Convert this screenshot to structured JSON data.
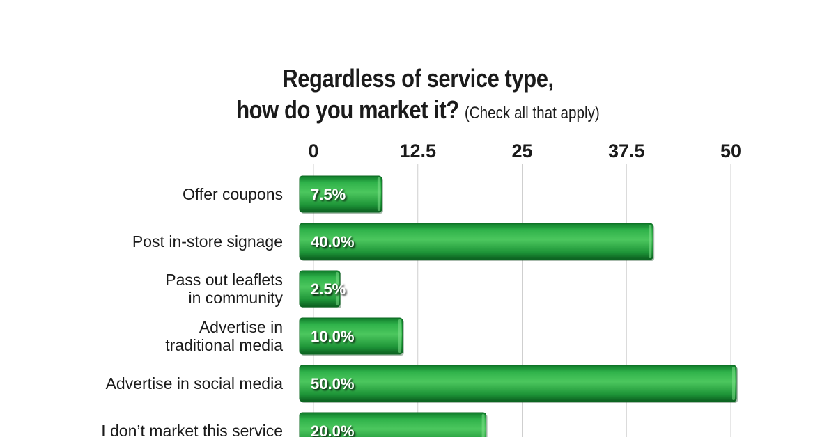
{
  "chart_data": {
    "type": "bar",
    "orientation": "horizontal",
    "title": "Regardless of service type,",
    "title_line2": "how do you market it?",
    "subtitle": "(Check all that apply)",
    "xlim": [
      0,
      50
    ],
    "ticks": [
      "0",
      "12.5",
      "25",
      "37.5",
      "50"
    ],
    "tick_values": [
      0,
      12.5,
      25,
      37.5,
      50
    ],
    "grid": true,
    "categories": [
      [
        "Offer coupons"
      ],
      [
        "Post in-store signage"
      ],
      [
        "Pass out leaflets",
        "in community"
      ],
      [
        "Advertise in",
        "traditional media"
      ],
      [
        "Advertise in social media"
      ],
      [
        "I don’t market this service"
      ]
    ],
    "values": [
      7.5,
      40.0,
      2.5,
      10.0,
      50.0,
      20.0
    ],
    "value_labels": [
      "7.5%",
      "40.0%",
      "2.5%",
      "10.0%",
      "50.0%",
      "20.0%"
    ],
    "colors": {
      "bar": "#1f9a3c",
      "bar_light": "#5fd06c",
      "bar_dark": "#0c6a22",
      "grid": "#cfcfcf"
    }
  }
}
